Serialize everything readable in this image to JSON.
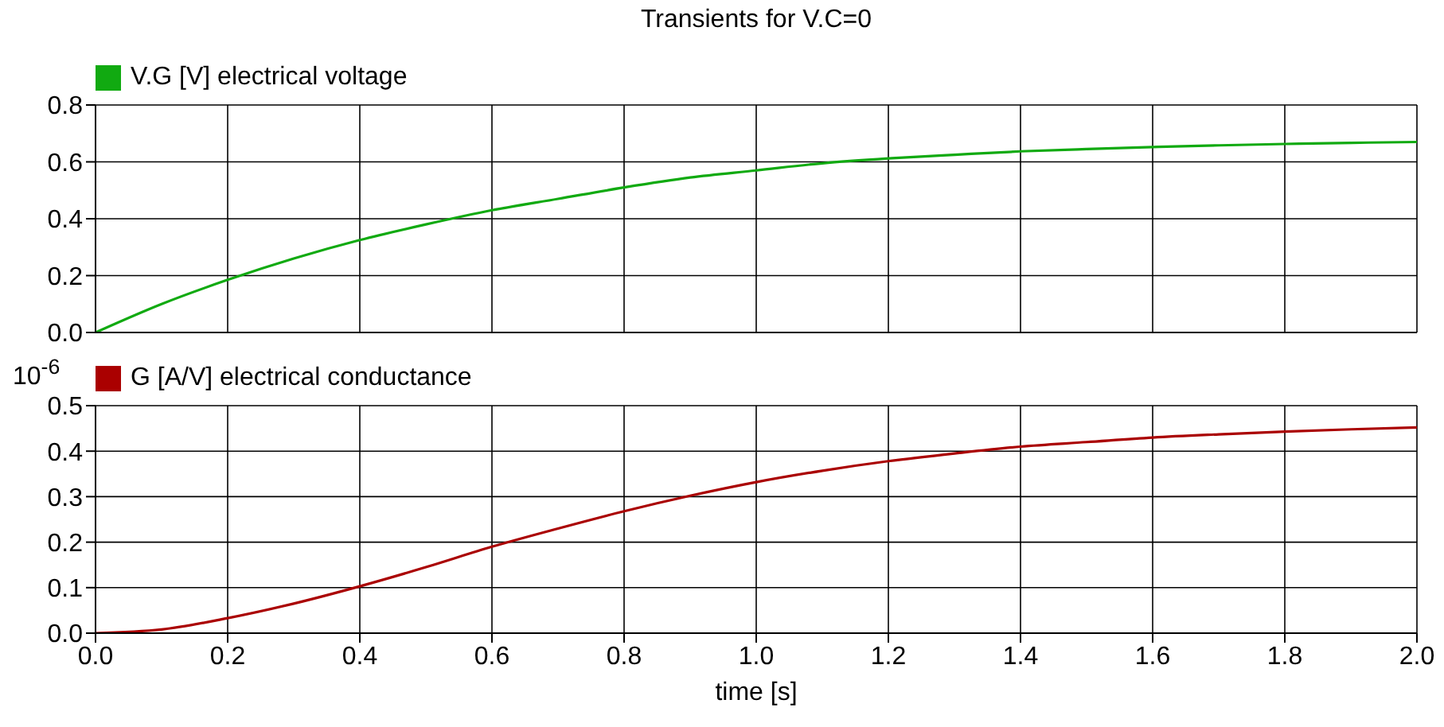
{
  "chart_data": [
    {
      "type": "line",
      "title": "Transients for V.C=0",
      "x": [
        0,
        0.1,
        0.2,
        0.3,
        0.4,
        0.5,
        0.6,
        0.7,
        0.8,
        0.9,
        1.0,
        1.1,
        1.2,
        1.3,
        1.4,
        1.5,
        1.6,
        1.7,
        1.8,
        1.9,
        2.0
      ],
      "series": [
        {
          "name": "V.G [V] electrical voltage",
          "color": "#11aa11",
          "values": [
            0,
            0.1,
            0.185,
            0.26,
            0.325,
            0.38,
            0.43,
            0.47,
            0.51,
            0.545,
            0.57,
            0.595,
            0.612,
            0.625,
            0.637,
            0.645,
            0.652,
            0.658,
            0.663,
            0.667,
            0.67
          ]
        }
      ],
      "xlim": [
        0,
        2
      ],
      "xticks": [
        0,
        0.2,
        0.4,
        0.6,
        0.8,
        1,
        1.2,
        1.4,
        1.6,
        1.8,
        2
      ],
      "ylim": [
        0,
        0.8
      ],
      "yticks": [
        {
          "value": 0,
          "label": "0.0"
        },
        0.2,
        0.4,
        0.6,
        0.8
      ],
      "tick_labels": "y",
      "grid": true,
      "legend": "top left",
      "marker": "none"
    },
    {
      "type": "line",
      "xlabel": "time [s]",
      "annotations": [
        "10$^{-6}$"
      ],
      "x": [
        0,
        0.1,
        0.2,
        0.3,
        0.4,
        0.5,
        0.6,
        0.7,
        0.8,
        0.9,
        1.0,
        1.1,
        1.2,
        1.3,
        1.4,
        1.5,
        1.6,
        1.7,
        1.8,
        1.9,
        2.0
      ],
      "series": [
        {
          "name": "G [A/V] electrical conductance",
          "color": "#aa0000",
          "values": [
            0,
            0.008,
            0.033,
            0.065,
            0.103,
            0.145,
            0.19,
            0.23,
            0.268,
            0.302,
            0.332,
            0.357,
            0.378,
            0.395,
            0.41,
            0.42,
            0.43,
            0.437,
            0.443,
            0.448,
            0.452
          ]
        }
      ],
      "xlim": [
        0,
        2
      ],
      "xticks": [
        {
          "value": 0,
          "label": "0.0"
        },
        0.2,
        0.4,
        0.6,
        0.8,
        {
          "value": 1,
          "label": "1.0"
        },
        1.2,
        1.4,
        1.6,
        1.8,
        {
          "value": 2,
          "label": "2.0"
        }
      ],
      "ylim": [
        0,
        0.5
      ],
      "yticks": [
        {
          "value": 0,
          "label": "0.0"
        },
        0.1,
        0.2,
        0.3,
        0.4,
        0.5
      ],
      "grid": true,
      "legend": "top left",
      "marker": "none"
    }
  ]
}
